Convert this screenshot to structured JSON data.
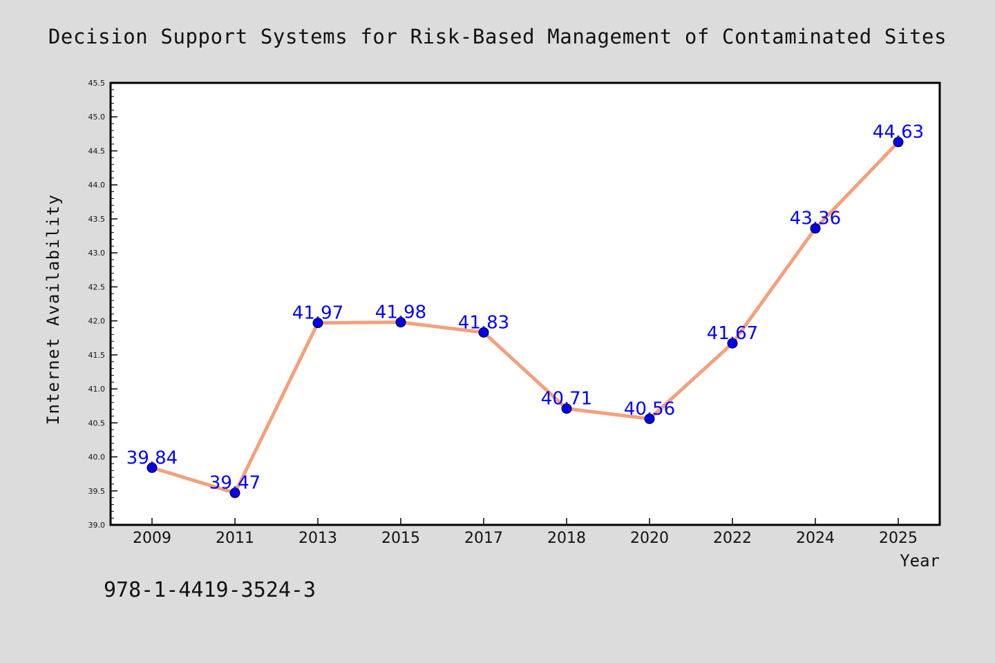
{
  "chart_data": {
    "type": "line",
    "title": "Decision Support Systems for Risk-Based Management of Contaminated Sites",
    "xlabel": "Year",
    "ylabel": "Internet Availability",
    "categories": [
      "2009",
      "2011",
      "2013",
      "2015",
      "2017",
      "2018",
      "2020",
      "2022",
      "2024",
      "2025"
    ],
    "values": [
      39.84,
      39.47,
      41.97,
      41.98,
      41.83,
      40.71,
      40.56,
      41.67,
      43.36,
      44.63
    ],
    "data_labels": [
      "39.84",
      "39.47",
      "41.97",
      "41.98",
      "41.83",
      "40.71",
      "40.56",
      "41.67",
      "43.36",
      "44.63"
    ],
    "ylim": [
      39.0,
      45.5
    ],
    "yticks": [
      "39.0",
      "39.5",
      "40.0",
      "40.5",
      "41.0",
      "41.5",
      "42.0",
      "42.5",
      "43.0",
      "43.5",
      "44.0",
      "44.5",
      "45.0",
      "45.5"
    ],
    "grid": false,
    "legend": "none",
    "annotation": "978-1-4419-3524-3",
    "colors": {
      "background": "#dcdcdc",
      "plot_background": "#ffffff",
      "line": "#f4a07c",
      "marker": "#0000ee",
      "data_label": "#0000ff",
      "text": "#111111"
    }
  }
}
